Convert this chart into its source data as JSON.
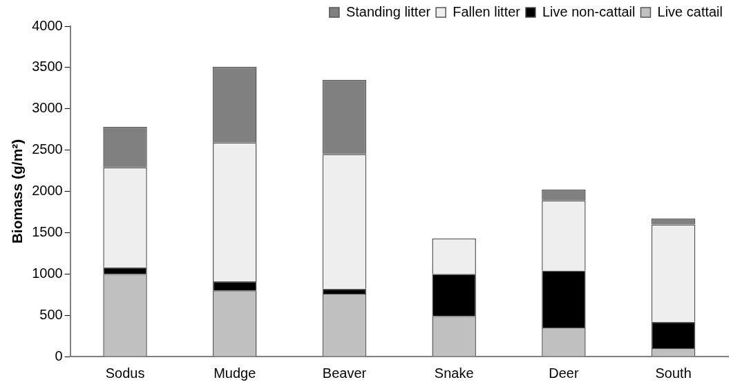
{
  "chart_data": {
    "type": "bar",
    "stacked": true,
    "ylabel": "Biomass (g/m²)",
    "categories": [
      "Sodus",
      "Mudge",
      "Beaver",
      "Snake",
      "Deer",
      "South"
    ],
    "series": [
      {
        "name": "Live cattail",
        "color": "#c0c0c0",
        "values": [
          1000,
          800,
          760,
          490,
          350,
          100
        ]
      },
      {
        "name": "Live non-cattail",
        "color": "#000000",
        "values": [
          80,
          110,
          60,
          510,
          690,
          320
        ]
      },
      {
        "name": "Fallen litter",
        "color": "#eeeeee",
        "values": [
          1210,
          1680,
          1630,
          430,
          850,
          1180
        ]
      },
      {
        "name": "Standing litter",
        "color": "#808080",
        "values": [
          490,
          920,
          900,
          null,
          130,
          70
        ]
      }
    ],
    "ylim": [
      0,
      4000
    ],
    "yticks": [
      0,
      500,
      1000,
      1500,
      2000,
      2500,
      3000,
      3500,
      4000
    ],
    "grid": false,
    "legend": "top right"
  }
}
